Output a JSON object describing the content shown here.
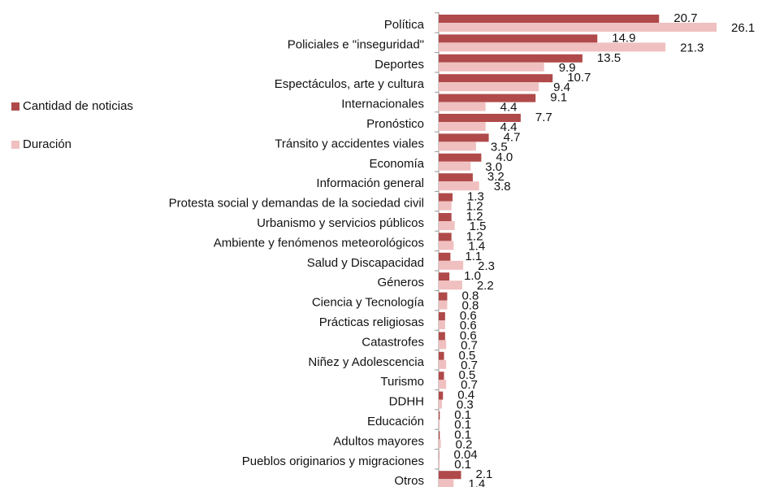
{
  "chart_data": {
    "type": "hbar",
    "categories": [
      "Política",
      "Policiales e \"inseguridad\"",
      "Deportes",
      "Espectáculos, arte y cultura",
      "Internacionales",
      "Pronóstico",
      "Tránsito y accidentes viales",
      "Economía",
      "Información general",
      "Protesta social y demandas de la sociedad civil",
      "Urbanismo y servicios públicos",
      "Ambiente y fenómenos meteorológicos",
      "Salud y Discapacidad",
      "Géneros",
      "Ciencia y Tecnología",
      "Prácticas religiosas",
      "Catastrofes",
      "Niñez y Adolescencia",
      "Turismo",
      "DDHH",
      "Educación",
      "Adultos mayores",
      "Pueblos originarios y migraciones",
      "Otros"
    ],
    "series": [
      {
        "name": "Cantidad de noticias",
        "color": "#b04a4a",
        "values": [
          20.7,
          14.9,
          13.5,
          10.7,
          9.1,
          7.7,
          4.7,
          4.0,
          3.2,
          1.3,
          1.2,
          1.2,
          1.1,
          1.0,
          0.8,
          0.6,
          0.6,
          0.5,
          0.5,
          0.4,
          0.1,
          0.1,
          0.04,
          2.1
        ],
        "value_labels": [
          "20.7",
          "14.9",
          "13.5",
          "10.7",
          "9.1",
          "7.7",
          "4.7",
          "4.0",
          "3.2",
          "1.3",
          "1.2",
          "1.2",
          "1.1",
          "1.0",
          "0.8",
          "0.6",
          "0.6",
          "0.5",
          "0.5",
          "0.4",
          "0.1",
          "0.1",
          "0.04",
          "2.1"
        ]
      },
      {
        "name": "Duración",
        "color": "#f0c0c0",
        "values": [
          26.1,
          21.3,
          9.9,
          9.4,
          4.4,
          4.4,
          3.5,
          3.0,
          3.8,
          1.2,
          1.5,
          1.4,
          2.3,
          2.2,
          0.8,
          0.6,
          0.7,
          0.7,
          0.7,
          0.3,
          0.1,
          0.2,
          0.1,
          1.4
        ],
        "value_labels": [
          "26.1",
          "21.3",
          "9.9",
          "9.4",
          "4.4",
          "4.4",
          "3.5",
          "3.0",
          "3.8",
          "1.2",
          "1.5",
          "1.4",
          "2.3",
          "2.2",
          "0.8",
          "0.6",
          "0.7",
          "0.7",
          "0.7",
          "0.3",
          "0.1",
          "0.2",
          "0.1",
          "1.4"
        ]
      }
    ]
  }
}
